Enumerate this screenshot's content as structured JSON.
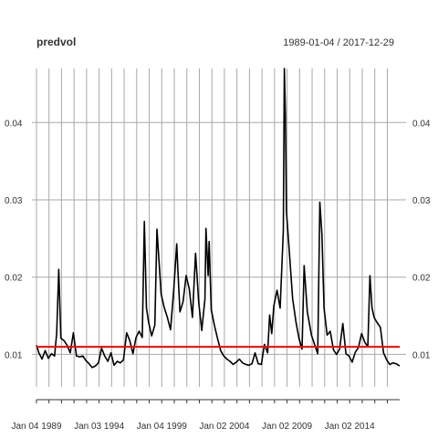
{
  "chart_data": {
    "type": "line",
    "title": "predvol",
    "date_range": "1989-01-04 / 2017-12-29",
    "xlabel": "",
    "ylabel": "",
    "x_range": [
      "1989-01-04",
      "2017-12-29"
    ],
    "ylim": [
      0.0058,
      0.047
    ],
    "grid": "on",
    "legend": "none",
    "y_ticks": [
      0.01,
      0.02,
      0.03,
      0.04
    ],
    "y_tick_labels": [
      "0.01",
      "0.02",
      "0.03",
      "0.04"
    ],
    "x_tick_labels": [
      {
        "date": "1989-01-04",
        "label": "Jan 04 1989"
      },
      {
        "date": "1994-01-03",
        "label": "Jan 03 1994"
      },
      {
        "date": "1999-01-04",
        "label": "Jan 04 1999"
      },
      {
        "date": "2004-01-02",
        "label": "Jan 02 2004"
      },
      {
        "date": "2009-01-02",
        "label": "Jan 02 2009"
      },
      {
        "date": "2014-01-02",
        "label": "Jan 02 2014"
      }
    ],
    "series": [
      {
        "color": "#000000",
        "x": [
          "1989-01-04",
          "1989-03",
          "1989-06",
          "1989-09",
          "1989-12",
          "1990-03",
          "1990-06",
          "1990-08",
          "1990-10",
          "1990-12",
          "1991-03",
          "1991-06",
          "1991-09",
          "1991-12",
          "1992-03",
          "1992-06",
          "1992-09",
          "1992-12",
          "1993-03",
          "1993-06",
          "1993-09",
          "1993-12",
          "1994-03",
          "1994-06",
          "1994-09",
          "1994-12",
          "1995-03",
          "1995-06",
          "1995-09",
          "1995-12",
          "1996-03",
          "1996-06",
          "1996-09",
          "1996-12",
          "1997-03",
          "1997-06",
          "1997-08",
          "1997-10",
          "1997-12",
          "1998-03",
          "1998-06",
          "1998-08",
          "1998-10",
          "1998-12",
          "1999-03",
          "1999-06",
          "1999-09",
          "1999-12",
          "2000-03",
          "2000-04",
          "2000-06",
          "2000-09",
          "2000-12",
          "2001-03",
          "2001-06",
          "2001-09",
          "2001-12",
          "2002-03",
          "2002-06",
          "2002-07",
          "2002-09",
          "2002-10",
          "2002-12",
          "2003-03",
          "2003-06",
          "2003-09",
          "2003-12",
          "2004-03",
          "2004-06",
          "2004-09",
          "2004-12",
          "2005-03",
          "2005-06",
          "2005-09",
          "2005-12",
          "2006-03",
          "2006-06",
          "2006-09",
          "2006-12",
          "2007-03",
          "2007-06",
          "2007-08",
          "2007-10",
          "2007-12",
          "2008-03",
          "2008-06",
          "2008-09",
          "2008-10",
          "2008-11",
          "2008-12",
          "2009-03",
          "2009-06",
          "2009-09",
          "2009-12",
          "2010-03",
          "2010-05",
          "2010-08",
          "2010-12",
          "2011-03",
          "2011-06",
          "2011-08",
          "2011-10",
          "2011-12",
          "2012-03",
          "2012-06",
          "2012-09",
          "2012-12",
          "2013-03",
          "2013-06",
          "2013-09",
          "2013-12",
          "2014-03",
          "2014-06",
          "2014-09",
          "2014-12",
          "2015-03",
          "2015-06",
          "2015-08",
          "2015-10",
          "2015-12",
          "2016-02",
          "2016-06",
          "2016-09",
          "2016-12",
          "2017-03",
          "2017-06",
          "2017-09",
          "2017-12-29"
        ],
        "values": [
          0.0112,
          0.0102,
          0.0094,
          0.0105,
          0.0095,
          0.0101,
          0.0098,
          0.0127,
          0.021,
          0.0121,
          0.0118,
          0.0112,
          0.0102,
          0.0128,
          0.0098,
          0.0097,
          0.0098,
          0.0092,
          0.0088,
          0.0083,
          0.0085,
          0.0089,
          0.0108,
          0.0098,
          0.0091,
          0.0102,
          0.0086,
          0.0091,
          0.0089,
          0.0093,
          0.0128,
          0.0118,
          0.0101,
          0.0122,
          0.013,
          0.0122,
          0.0272,
          0.016,
          0.0142,
          0.0124,
          0.0138,
          0.0262,
          0.022,
          0.0178,
          0.0161,
          0.0148,
          0.0132,
          0.0182,
          0.0243,
          0.021,
          0.0155,
          0.0168,
          0.0202,
          0.0185,
          0.0148,
          0.0231,
          0.0167,
          0.0131,
          0.0172,
          0.0263,
          0.0202,
          0.0246,
          0.0158,
          0.0138,
          0.0121,
          0.0105,
          0.0098,
          0.0094,
          0.0091,
          0.0087,
          0.009,
          0.0094,
          0.0089,
          0.0087,
          0.0086,
          0.0088,
          0.0102,
          0.0088,
          0.0087,
          0.0113,
          0.0102,
          0.0151,
          0.0127,
          0.0163,
          0.0183,
          0.016,
          0.026,
          0.047,
          0.041,
          0.0285,
          0.0229,
          0.0172,
          0.0143,
          0.0121,
          0.0107,
          0.0215,
          0.0155,
          0.0125,
          0.0113,
          0.0101,
          0.0297,
          0.0255,
          0.016,
          0.0125,
          0.013,
          0.0106,
          0.01,
          0.0107,
          0.014,
          0.0101,
          0.0098,
          0.009,
          0.0103,
          0.0109,
          0.0127,
          0.0116,
          0.011,
          0.0202,
          0.016,
          0.0148,
          0.0143,
          0.0135,
          0.0102,
          0.0093,
          0.0087,
          0.0089,
          0.0088,
          0.0085
        ]
      },
      {
        "color": "#ff0000",
        "x": [
          "1989-01-04",
          "2017-12-29"
        ],
        "values": [
          0.011,
          0.011
        ]
      }
    ]
  }
}
